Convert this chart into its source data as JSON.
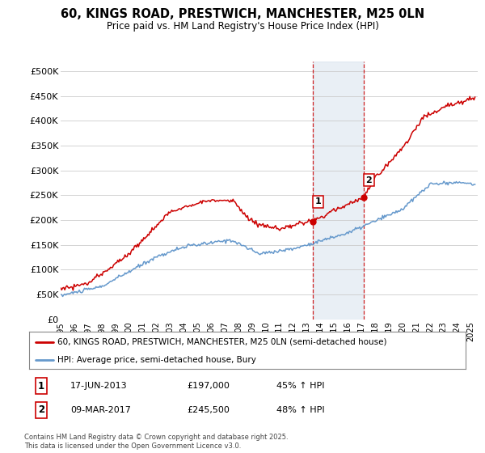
{
  "title": "60, KINGS ROAD, PRESTWICH, MANCHESTER, M25 0LN",
  "subtitle": "Price paid vs. HM Land Registry's House Price Index (HPI)",
  "ylabel_ticks": [
    "£0",
    "£50K",
    "£100K",
    "£150K",
    "£200K",
    "£250K",
    "£300K",
    "£350K",
    "£400K",
    "£450K",
    "£500K"
  ],
  "ytick_values": [
    0,
    50000,
    100000,
    150000,
    200000,
    250000,
    300000,
    350000,
    400000,
    450000,
    500000
  ],
  "ylim": [
    0,
    520000
  ],
  "xlim_start": 1995.0,
  "xlim_end": 2025.5,
  "sale1_date": 2013.46,
  "sale1_price": 197000,
  "sale2_date": 2017.18,
  "sale2_price": 245500,
  "line_color_property": "#cc0000",
  "line_color_hpi": "#6699cc",
  "legend_label_property": "60, KINGS ROAD, PRESTWICH, MANCHESTER, M25 0LN (semi-detached house)",
  "legend_label_hpi": "HPI: Average price, semi-detached house, Bury",
  "annotation1_label": "1",
  "annotation1_date_str": "17-JUN-2013",
  "annotation1_price_str": "£197,000",
  "annotation1_hpi_str": "45% ↑ HPI",
  "annotation2_label": "2",
  "annotation2_date_str": "09-MAR-2017",
  "annotation2_price_str": "£245,500",
  "annotation2_hpi_str": "48% ↑ HPI",
  "footer": "Contains HM Land Registry data © Crown copyright and database right 2025.\nThis data is licensed under the Open Government Licence v3.0.",
  "background_color": "#ffffff",
  "plot_bg_color": "#ffffff",
  "grid_color": "#cccccc",
  "shade_color": "#c8d8e8",
  "shade_alpha": 0.4
}
